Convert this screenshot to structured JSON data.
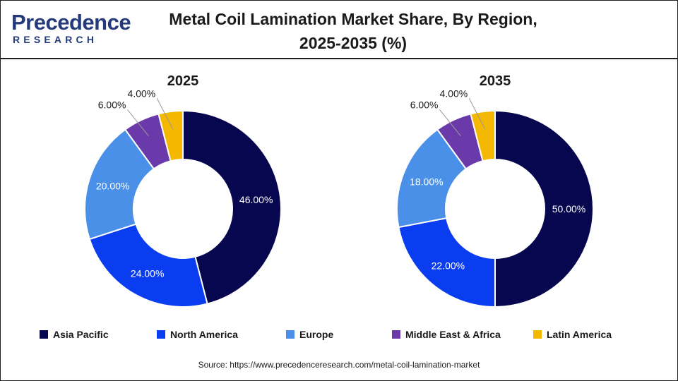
{
  "brand": {
    "name": "Precedence",
    "sub": "RESEARCH"
  },
  "title_line1": "Metal Coil Lamination Market Share, By Region,",
  "title_line2": "2025-2035 (%)",
  "source": "Source: https://www.precedenceresearch.com/metal-coil-lamination-market",
  "colors": {
    "Asia Pacific": "#07074f",
    "North America": "#0a3df0",
    "Europe": "#4a90e8",
    "Middle East & Africa": "#6a3aaa",
    "Latin America": "#f5b800"
  },
  "chart_data": [
    {
      "type": "pie",
      "title": "2025",
      "categories": [
        "Asia Pacific",
        "North America",
        "Europe",
        "Middle East & Africa",
        "Latin America"
      ],
      "values": [
        46,
        24,
        20,
        6,
        4
      ],
      "labels": [
        "46.00%",
        "24.00%",
        "20.00%",
        "6.00%",
        "4.00%"
      ]
    },
    {
      "type": "pie",
      "title": "2035",
      "categories": [
        "Asia Pacific",
        "North America",
        "Europe",
        "Middle East & Africa",
        "Latin America"
      ],
      "values": [
        50,
        22,
        18,
        6,
        4
      ],
      "labels": [
        "50.00%",
        "22.00%",
        "18.00%",
        "6.00%",
        "4.00%"
      ]
    }
  ],
  "legend": [
    "Asia Pacific",
    "North America",
    "Europe",
    "Middle East & Africa",
    "Latin America"
  ]
}
